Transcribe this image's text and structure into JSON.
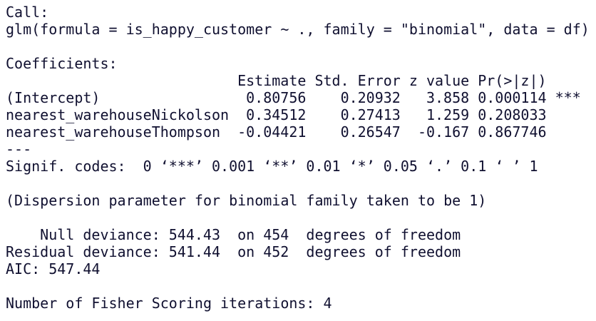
{
  "call": {
    "label": "Call:",
    "formula": "glm(formula = is_happy_customer ~ ., family = \"binomial\", data = df)"
  },
  "coefficients": {
    "label": "Coefficients:",
    "columns": [
      "Estimate",
      "Std. Error",
      "z value",
      "Pr(>|z|)"
    ],
    "rows": [
      [
        "(Intercept)",
        "0.80756",
        "0.20932",
        "3.858",
        "0.000114",
        "***"
      ],
      [
        "nearest_warehouseNickolson",
        "0.34512",
        "0.27413",
        "1.259",
        "0.208033"
      ],
      [
        "nearest_warehouseThompson",
        "-0.04421",
        "0.26547",
        "-0.167",
        "0.867746"
      ]
    ]
  },
  "separator": "---",
  "signif": {
    "label": "Signif. codes:",
    "codes": "0 ‘***’ 0.001 ‘**’ 0.01 ‘*’ 0.05 ‘.’ 0.1 ‘ ’ 1"
  },
  "dispersion": "(Dispersion parameter for binomial family taken to be 1)",
  "deviance": [
    [
      "Null deviance:",
      "544.43",
      "on 454",
      "degrees of freedom"
    ],
    [
      "Residual deviance:",
      "541.44",
      "on 452",
      "degrees of freedom"
    ]
  ],
  "aic": {
    "label": "AIC:",
    "value": "547.44"
  },
  "iterations": {
    "label": "Number of Fisher Scoring iterations:",
    "value": "4"
  }
}
